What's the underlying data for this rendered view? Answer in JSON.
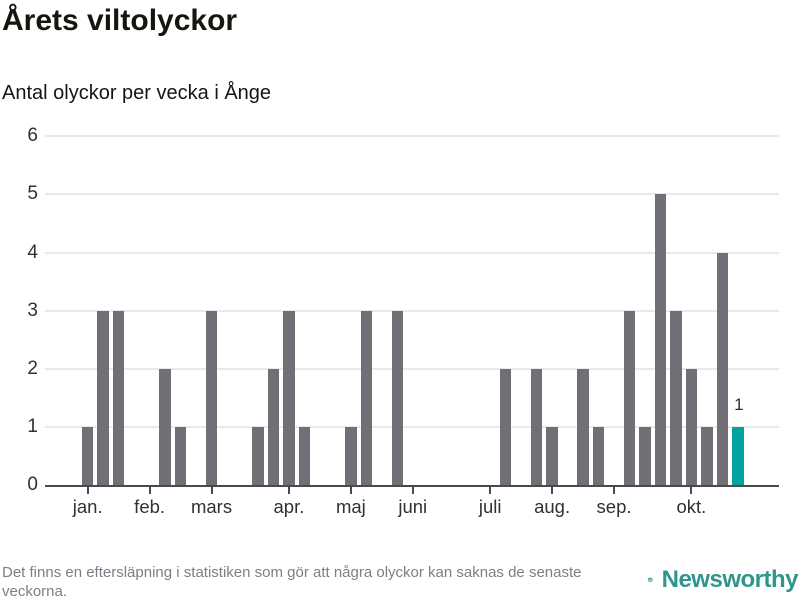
{
  "header": {
    "title": "Årets viltolyckor",
    "subtitle": "Antal olyckor per vecka i Ånge"
  },
  "chart_data": {
    "type": "bar",
    "title": "Årets viltolyckor",
    "subtitle": "Antal olyckor per vecka i Ånge",
    "x_unit": "vecka (week), jan–okt",
    "values": [
      1,
      3,
      3,
      0,
      0,
      2,
      1,
      0,
      3,
      0,
      0,
      1,
      2,
      3,
      1,
      0,
      0,
      1,
      3,
      0,
      3,
      0,
      0,
      0,
      0,
      0,
      0,
      2,
      0,
      2,
      1,
      0,
      2,
      1,
      0,
      3,
      1,
      5,
      3,
      2,
      1,
      4,
      1
    ],
    "highlight_index": 42,
    "highlight_label": "1",
    "month_ticks": [
      {
        "label": "jan.",
        "week": 0
      },
      {
        "label": "feb.",
        "week": 4
      },
      {
        "label": "mars",
        "week": 8
      },
      {
        "label": "apr.",
        "week": 13
      },
      {
        "label": "maj",
        "week": 17
      },
      {
        "label": "juni",
        "week": 21
      },
      {
        "label": "juli",
        "week": 26
      },
      {
        "label": "aug.",
        "week": 30
      },
      {
        "label": "sep.",
        "week": 34
      },
      {
        "label": "okt.",
        "week": 39
      }
    ],
    "ylim": [
      0,
      6
    ],
    "yticks": [
      0,
      1,
      2,
      3,
      4,
      5,
      6
    ],
    "grid": true,
    "legend": "none"
  },
  "colors": {
    "bar": "#716e76",
    "highlight": "#00a49c",
    "grid": "#e9e8ea",
    "axis": "#4b484e",
    "brand_teal": "#3f9f97",
    "brand_text": "#2f958d",
    "footer_text": "#7f7d88"
  },
  "footer": {
    "note": "Det finns en eftersläpning i statistiken som gör att några olyckor kan saknas de senaste veckorna.",
    "brand": "Newsworthy"
  }
}
